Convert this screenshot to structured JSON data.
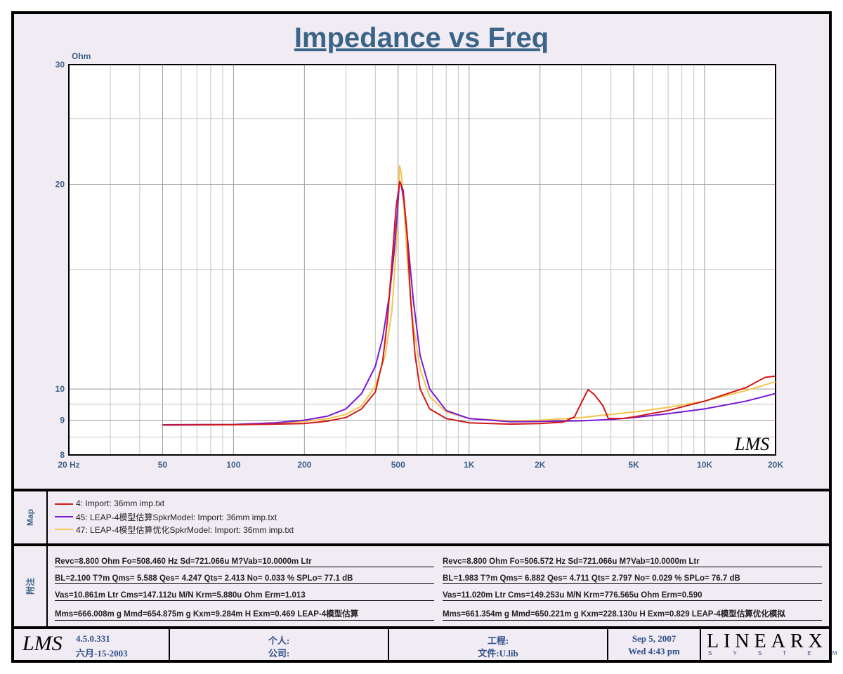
{
  "chart_data": {
    "type": "line",
    "title": "Impedance vs Freq",
    "yunit": "Ohm",
    "xscale": "log",
    "yscale": "log",
    "xlim": [
      20,
      20000
    ],
    "ylim": [
      8,
      30
    ],
    "grid": true,
    "x_tick_labels": [
      {
        "value": 20,
        "label": "20  Hz"
      },
      {
        "value": 50,
        "label": "50"
      },
      {
        "value": 100,
        "label": "100"
      },
      {
        "value": 200,
        "label": "200"
      },
      {
        "value": 500,
        "label": "500"
      },
      {
        "value": 1000,
        "label": "1K"
      },
      {
        "value": 2000,
        "label": "2K"
      },
      {
        "value": 5000,
        "label": "5K"
      },
      {
        "value": 10000,
        "label": "10K"
      },
      {
        "value": 20000,
        "label": "20K"
      }
    ],
    "y_tick_labels": [
      {
        "value": 8,
        "label": "8"
      },
      {
        "value": 9,
        "label": "9"
      },
      {
        "value": 10,
        "label": "10"
      },
      {
        "value": 20,
        "label": "20"
      },
      {
        "value": 30,
        "label": "30"
      }
    ],
    "series": [
      {
        "name": "4: Import: 36mm imp.txt",
        "color": "#d01818",
        "points": [
          [
            50,
            8.85
          ],
          [
            100,
            8.86
          ],
          [
            150,
            8.88
          ],
          [
            200,
            8.9
          ],
          [
            250,
            8.97
          ],
          [
            300,
            9.08
          ],
          [
            350,
            9.35
          ],
          [
            400,
            9.9
          ],
          [
            430,
            11.0
          ],
          [
            450,
            12.6
          ],
          [
            470,
            15.3
          ],
          [
            490,
            18.5
          ],
          [
            508,
            20.2
          ],
          [
            525,
            19.6
          ],
          [
            545,
            17.0
          ],
          [
            565,
            13.5
          ],
          [
            590,
            11.2
          ],
          [
            620,
            10.0
          ],
          [
            680,
            9.35
          ],
          [
            800,
            9.05
          ],
          [
            1000,
            8.92
          ],
          [
            1500,
            8.88
          ],
          [
            2000,
            8.9
          ],
          [
            2500,
            8.94
          ],
          [
            2800,
            9.1
          ],
          [
            3000,
            9.55
          ],
          [
            3200,
            9.98
          ],
          [
            3400,
            9.82
          ],
          [
            3700,
            9.45
          ],
          [
            3900,
            9.05
          ],
          [
            4500,
            9.05
          ],
          [
            5000,
            9.1
          ],
          [
            7000,
            9.3
          ],
          [
            10000,
            9.6
          ],
          [
            15000,
            10.05
          ],
          [
            18000,
            10.4
          ],
          [
            20000,
            10.45
          ]
        ]
      },
      {
        "name": "45: LEAP-4模型估算SpkrModel: Import: 36mm imp.txt",
        "color": "#7a18d8",
        "points": [
          [
            50,
            8.86
          ],
          [
            100,
            8.87
          ],
          [
            150,
            8.92
          ],
          [
            200,
            9.0
          ],
          [
            250,
            9.12
          ],
          [
            300,
            9.35
          ],
          [
            350,
            9.85
          ],
          [
            400,
            10.8
          ],
          [
            430,
            11.9
          ],
          [
            460,
            13.8
          ],
          [
            480,
            15.8
          ],
          [
            495,
            18.0
          ],
          [
            506,
            20.1
          ],
          [
            515,
            20.0
          ],
          [
            530,
            18.8
          ],
          [
            550,
            16.4
          ],
          [
            580,
            13.5
          ],
          [
            620,
            11.2
          ],
          [
            680,
            10.0
          ],
          [
            800,
            9.3
          ],
          [
            1000,
            9.05
          ],
          [
            1500,
            8.95
          ],
          [
            2000,
            8.96
          ],
          [
            3000,
            8.98
          ],
          [
            4000,
            9.02
          ],
          [
            5000,
            9.08
          ],
          [
            7000,
            9.2
          ],
          [
            10000,
            9.35
          ],
          [
            15000,
            9.6
          ],
          [
            20000,
            9.85
          ]
        ]
      },
      {
        "name": "47: LEAP-4模型估算优化SpkrModel: Import: 36mm imp.txt",
        "color": "#f5c44a",
        "points": [
          [
            50,
            8.86
          ],
          [
            100,
            8.87
          ],
          [
            150,
            8.9
          ],
          [
            200,
            8.96
          ],
          [
            250,
            9.04
          ],
          [
            300,
            9.18
          ],
          [
            350,
            9.45
          ],
          [
            400,
            10.1
          ],
          [
            440,
            11.2
          ],
          [
            470,
            13.0
          ],
          [
            490,
            16.0
          ],
          [
            500,
            19.0
          ],
          [
            507,
            21.3
          ],
          [
            515,
            20.8
          ],
          [
            530,
            18.3
          ],
          [
            550,
            15.0
          ],
          [
            580,
            12.4
          ],
          [
            620,
            10.7
          ],
          [
            680,
            9.75
          ],
          [
            800,
            9.25
          ],
          [
            1000,
            9.05
          ],
          [
            1500,
            8.98
          ],
          [
            2000,
            9.0
          ],
          [
            3000,
            9.08
          ],
          [
            4000,
            9.18
          ],
          [
            5000,
            9.25
          ],
          [
            7000,
            9.4
          ],
          [
            10000,
            9.6
          ],
          [
            15000,
            9.95
          ],
          [
            20000,
            10.25
          ]
        ]
      }
    ]
  },
  "map_panel": {
    "label": "Map"
  },
  "notes_panel": {
    "label": "附注",
    "left": [
      "Revc=8.800 Ohm  Fo=508.460 Hz  Sd=721.066u M?Vab=10.0000m Ltr",
      "BL=2.100 T?m  Qms= 5.588  Qes= 4.247  Qts= 2.413  No= 0.033 %  SPLo= 77.1 dB",
      "Vas=10.861m Ltr  Cms=147.112u M/N  Krm=5.880u Ohm  Erm=1.013",
      "Mms=666.008m g  Mmd=654.875m g  Kxm=9.284m H  Exm=0.469   LEAP-4模型估算"
    ],
    "right": [
      "Revc=8.800 Ohm  Fo=506.572 Hz  Sd=721.066u M?Vab=10.0000m Ltr",
      "BL=1.983 T?m  Qms= 6.882  Qes= 4.711  Qts= 2.797  No= 0.029 %  SPLo= 76.7 dB",
      "Vas=11.020m Ltr  Cms=149.253u M/N  Krm=776.565u Ohm  Erm=0.590",
      "Mms=661.354m g  Mmd=650.221m g  Kxm=228.130u H  Exm=0.829  LEAP-4模型估算优化模拟"
    ]
  },
  "chart_watermark": "LMS",
  "footer": {
    "logo": "LMS",
    "version": "4.5.0.331",
    "version_date": "六月-15-2003",
    "person_label": "个人:",
    "company_label": "公司:",
    "project_label": "工程:",
    "file_label": "文件:U.lib",
    "date": "Sep  5, 2007",
    "day_time": "Wed  4:43 pm",
    "brand": "LINEARX",
    "brand_sub": "S Y S T E M S"
  }
}
